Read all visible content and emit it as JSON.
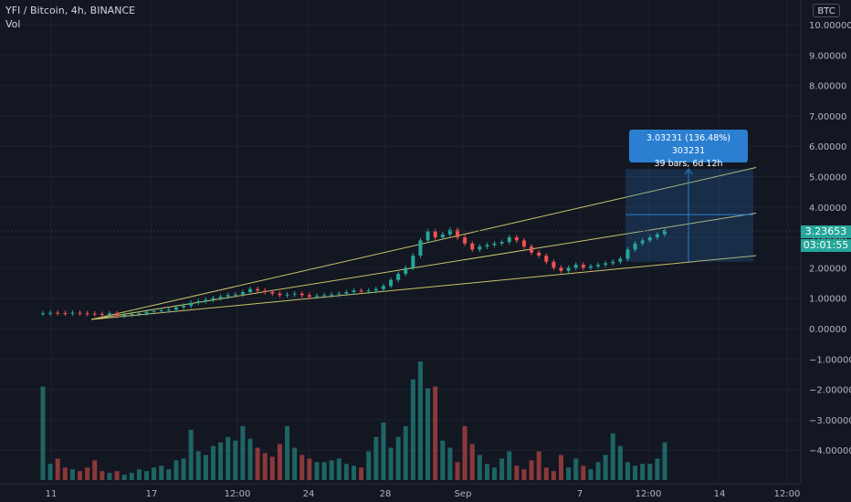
{
  "header": {
    "symbol_line": "YFI / Bitcoin, 4h, BINANCE",
    "volume_label": "Vol",
    "currency_button": "BTC"
  },
  "price_scale": {
    "ticks": [
      "10.00000",
      "9.00000",
      "8.00000",
      "7.00000",
      "6.00000",
      "5.00000",
      "4.00000",
      "3.00000",
      "2.00000",
      "1.00000",
      "0.00000",
      "−1.00000",
      "−2.00000",
      "−3.00000",
      "−4.00000"
    ],
    "current_price": "3.23653",
    "countdown": "03:01:55"
  },
  "time_axis": {
    "labels": [
      "11",
      "17",
      "12:00",
      "24",
      "28",
      "Sep",
      "7",
      "12:00",
      "14",
      "12:00"
    ]
  },
  "measure_tool": {
    "line1": "3.03231 (136.48%) 303231",
    "line2": "39 bars, 6d 12h"
  },
  "colors": {
    "background": "#131722",
    "up": "#26a69a",
    "down": "#ef5350",
    "trendline": "#c9c46a",
    "measure": "#2a7fd1",
    "grid": "#1e2230"
  },
  "chart_data": {
    "type": "candlestick",
    "price_range": [
      -4.5,
      10.3
    ],
    "close_series": [
      0.5,
      0.52,
      0.51,
      0.5,
      0.52,
      0.5,
      0.49,
      0.48,
      0.45,
      0.5,
      0.42,
      0.45,
      0.48,
      0.5,
      0.55,
      0.58,
      0.6,
      0.62,
      0.7,
      0.75,
      0.85,
      0.9,
      0.95,
      1.0,
      1.05,
      1.1,
      1.12,
      1.2,
      1.3,
      1.25,
      1.2,
      1.15,
      1.1,
      1.12,
      1.15,
      1.1,
      1.05,
      1.08,
      1.1,
      1.12,
      1.15,
      1.2,
      1.25,
      1.22,
      1.25,
      1.3,
      1.4,
      1.6,
      1.8,
      2.0,
      2.4,
      2.9,
      3.2,
      3.0,
      3.1,
      3.25,
      3.0,
      2.8,
      2.6,
      2.7,
      2.75,
      2.8,
      2.85,
      3.0,
      2.9,
      2.7,
      2.5,
      2.4,
      2.2,
      2.0,
      1.9,
      2.0,
      2.1,
      2.0,
      2.05,
      2.1,
      2.15,
      2.2,
      2.3,
      2.6,
      2.8,
      2.9,
      3.0,
      3.1,
      3.24
    ],
    "volume": [
      260,
      45,
      60,
      35,
      30,
      25,
      35,
      55,
      25,
      20,
      25,
      15,
      20,
      30,
      25,
      35,
      40,
      30,
      55,
      60,
      140,
      80,
      70,
      95,
      105,
      120,
      110,
      150,
      115,
      90,
      75,
      65,
      100,
      150,
      90,
      70,
      60,
      50,
      50,
      55,
      60,
      45,
      40,
      35,
      80,
      120,
      160,
      90,
      120,
      150,
      280,
      330,
      255,
      260,
      110,
      90,
      50,
      150,
      100,
      70,
      45,
      35,
      60,
      80,
      40,
      30,
      55,
      80,
      35,
      25,
      70,
      35,
      60,
      40,
      30,
      50,
      70,
      130,
      95,
      50,
      40,
      45,
      45,
      60,
      105
    ],
    "trendlines": [
      {
        "from": [
          0.1,
          0.3
        ],
        "to": [
          5.2,
          5.3
        ]
      },
      {
        "from": [
          0.1,
          0.3
        ],
        "to": [
          3.8,
          3.8
        ]
      },
      {
        "from": [
          0.1,
          0.3
        ],
        "to": [
          2.4,
          2.4
        ]
      }
    ],
    "measure_box": {
      "price_from": 2.2,
      "price_to": 5.25,
      "mid": 3.75
    }
  }
}
